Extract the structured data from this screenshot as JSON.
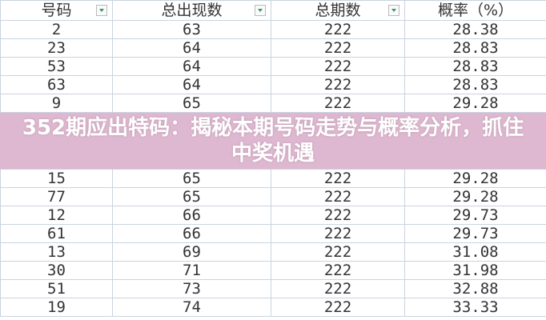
{
  "table": {
    "headers": [
      "号码",
      "总出现数",
      "总期数",
      "概率（%）"
    ],
    "rows": [
      [
        "2",
        "63",
        "222",
        "28.38"
      ],
      [
        "23",
        "64",
        "222",
        "28.83"
      ],
      [
        "53",
        "64",
        "222",
        "28.83"
      ],
      [
        "63",
        "64",
        "222",
        "28.83"
      ],
      [
        "9",
        "65",
        "222",
        "29.28"
      ],
      [
        "15",
        "65",
        "222",
        "29.28"
      ],
      [
        "77",
        "65",
        "222",
        "29.28"
      ],
      [
        "12",
        "66",
        "222",
        "29.73"
      ],
      [
        "61",
        "66",
        "222",
        "29.73"
      ],
      [
        "13",
        "69",
        "222",
        "31.08"
      ],
      [
        "30",
        "71",
        "222",
        "31.98"
      ],
      [
        "51",
        "73",
        "222",
        "32.88"
      ],
      [
        "19",
        "74",
        "222",
        "33.33"
      ]
    ]
  },
  "overlay": {
    "title": "352期应出特码：揭秘本期号码走势与概率分析，抓住中奖机遇"
  },
  "colors": {
    "filter_arrow": "#2a9d6b",
    "overlay": "#deb8d0",
    "grid": "#c9d3df"
  }
}
